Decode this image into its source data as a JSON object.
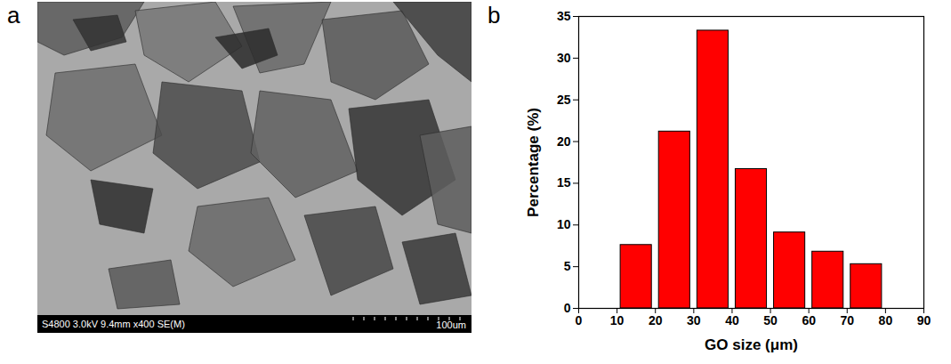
{
  "image_panel": {
    "panel_label": "a",
    "info_bar": "S4800 3.0kV 9.4mm x400 SE(M)",
    "scale_bar": "100um"
  },
  "chart_data": {
    "panel_label": "b",
    "type": "histogram",
    "bins": [
      10,
      20,
      30,
      40,
      50,
      60,
      70,
      80
    ],
    "values": [
      7.6,
      21.2,
      33.3,
      16.7,
      9.1,
      6.8,
      5.3
    ],
    "color": "#ff0000",
    "xlabel": "GO size (μm)",
    "ylabel": "Percentage (%)",
    "xlim": [
      0,
      90
    ],
    "xticks": [
      0,
      10,
      20,
      30,
      40,
      50,
      60,
      70,
      80,
      90
    ],
    "ylim": [
      0,
      35
    ],
    "yticks": [
      0,
      5,
      10,
      15,
      20,
      25,
      30,
      35
    ],
    "grid": false
  }
}
